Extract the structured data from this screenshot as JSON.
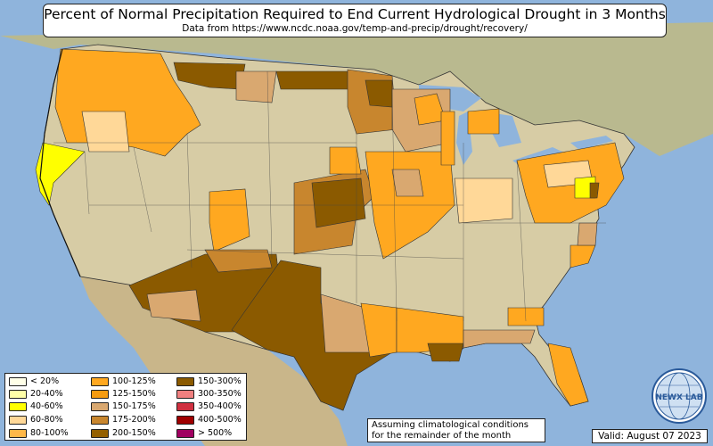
{
  "title": "Percent of Normal Precipitation Required to End Current Hydrological Drought in 3 Months",
  "subtitle": "Data from https://www.ncdc.noaa.gov/temp-and-precip/drought/recovery/",
  "legend": [
    {
      "label": "< 20%",
      "color": "#ffffe8"
    },
    {
      "label": "20-40%",
      "color": "#ffffa8"
    },
    {
      "label": "40-60%",
      "color": "#ffff00"
    },
    {
      "label": "60-80%",
      "color": "#ffd898"
    },
    {
      "label": "80-100%",
      "color": "#ffb848"
    },
    {
      "label": "100-125%",
      "color": "#ffa820"
    },
    {
      "label": "125-150%",
      "color": "#f59b10"
    },
    {
      "label": "150-175%",
      "color": "#d9a870"
    },
    {
      "label": "175-200%",
      "color": "#c8862e"
    },
    {
      "label": "200-150%",
      "color": "#946000"
    },
    {
      "label": "150-300%",
      "color": "#8b5a00"
    },
    {
      "label": "300-350%",
      "color": "#f08080"
    },
    {
      "label": "350-400%",
      "color": "#d03040"
    },
    {
      "label": "400-500%",
      "color": "#a00000"
    },
    {
      "label": "> 500%",
      "color": "#a00060"
    }
  ],
  "note": {
    "line1": "Assuming climatological conditions",
    "line2": "for the remainder of the month"
  },
  "valid": "Valid: August 07 2023",
  "logo": {
    "text": "NEWX LAB",
    "icon": "nexlab-globe-logo"
  },
  "colors": {
    "water": "#8fb4dc",
    "land": "#d4c7a4",
    "border": "#222222"
  }
}
